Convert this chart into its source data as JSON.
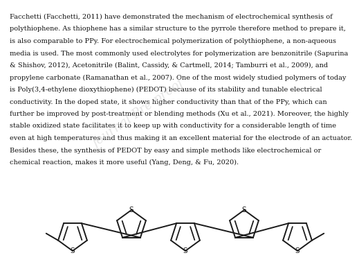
{
  "bg_color": "#ffffff",
  "text_color": "#111111",
  "lines": [
    "Facchetti (Facchetti, 2011) have demonstrated the mechanism of electrochemical synthesis of",
    "polythiophene. As thiophene has a similar structure to the pyrrole therefore method to prepare it,",
    "is also comparable to PPy. For electrochemical polymerization of polythiophene, a non-aqueous",
    "media is used. The most commonly used electrolytes for polymerization are benzonitrile (Sapurina",
    "& Shishov, 2012), Acetonitrile (Balint, Cassidy, & Cartmell, 2014; Tamburri et al., 2009), and",
    "propylene carbonate (Ramanathan et al., 2007). One of the most widely studied polymers of today",
    "is Poly(3,4-ethylene dioxythiophene) (PEDOT) because of its stability and tunable electrical",
    "conductivity. In the doped state, it shows higher conductivity than that of the PPy, which can",
    "further be improved by post-treatment or blending methods (Xu et al., 2021). Moreover, the highly",
    "stable oxidized state facilitates it to keep up with conductivity for a considerable length of time",
    "even at high temperatures and thus making it an excellent material for the electrode of an actuator.",
    "Besides these, the synthesis of PEDOT by easy and simple methods like electrochemical or",
    "chemical reaction, makes it more useful (Yang, Deng, & Fu, 2020)."
  ],
  "italic_words": [
    "et al",
    "et al."
  ],
  "line_color": "#1a1a1a",
  "s_color": "#1a1a1a",
  "watermark_text": "Journal Pre-proof",
  "watermark_color": "#cccccc",
  "watermark_alpha": 0.5
}
